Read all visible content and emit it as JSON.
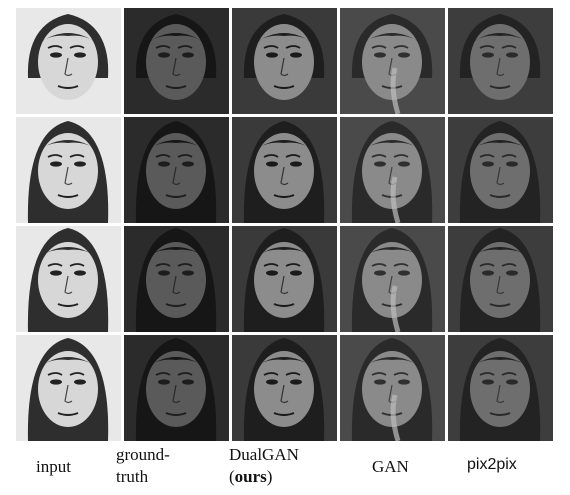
{
  "columns": [
    {
      "id": "input",
      "label": "input"
    },
    {
      "id": "ground-truth",
      "label_line1": "ground-",
      "label_line2": "truth"
    },
    {
      "id": "dualgan",
      "label_line1": "DualGAN",
      "label_open": "(",
      "label_bold": "ours",
      "label_close": ")"
    },
    {
      "id": "gan",
      "label": "GAN"
    },
    {
      "id": "pix2pix",
      "label": "pix2pix"
    }
  ],
  "rows": 4,
  "styles": {
    "input": {
      "bg": "#e8e8e8",
      "face": "#d7d7d7",
      "hair": "#2e2e2e",
      "ink": "#222222"
    },
    "ground-truth": {
      "bg": "#2b2b2b",
      "face": "#5a5a5a",
      "hair": "#161616",
      "ink": "#1d1d1d"
    },
    "dualgan": {
      "bg": "#3a3a3a",
      "face": "#8c8c8c",
      "hair": "#1e1e1e",
      "ink": "#1a1a1a"
    },
    "gan": {
      "bg": "#4a4a4a",
      "face": "#8a8a8a",
      "hair": "#2a2a2a",
      "ink": "#303030"
    },
    "pix2pix": {
      "bg": "#3d3d3d",
      "face": "#6e6e6e",
      "hair": "#232323",
      "ink": "#2a2a2a"
    }
  }
}
